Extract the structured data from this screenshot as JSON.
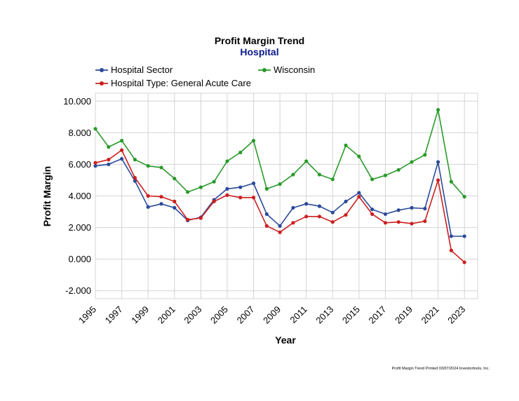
{
  "colors": {
    "hospital_sector": "#2c4a9a",
    "wisconsin": "#2a9a2a",
    "general_acute": "#cc1f1f",
    "subtitle": "#0a1a8c",
    "grid": "#d4d4d4"
  },
  "chart_data": {
    "type": "line",
    "title": "Profit Margin Trend",
    "subtitle": "Hospital",
    "xlabel": "Year",
    "ylabel": "Profit Margin",
    "ylim": [
      -2.5,
      10.5
    ],
    "xlim": [
      1995,
      2024
    ],
    "y_ticks": [
      "10.000",
      "8.000",
      "6.000",
      "4.000",
      "2.000",
      "0.000",
      "-2.000"
    ],
    "y_tick_values": [
      10,
      8,
      6,
      4,
      2,
      0,
      -2
    ],
    "x_ticks": [
      "1995",
      "1997",
      "1999",
      "2001",
      "2003",
      "2005",
      "2007",
      "2009",
      "2011",
      "2013",
      "2015",
      "2017",
      "2019",
      "2021",
      "2023"
    ],
    "grid": true,
    "x": [
      1995,
      1996,
      1997,
      1998,
      1999,
      2000,
      2001,
      2002,
      2003,
      2004,
      2005,
      2006,
      2007,
      2008,
      2009,
      2010,
      2011,
      2012,
      2013,
      2014,
      2015,
      2016,
      2017,
      2018,
      2019,
      2020,
      2021,
      2022,
      2023
    ],
    "series": [
      {
        "name": "Hospital Sector",
        "color_key": "hospital_sector",
        "values": [
          5.9,
          6.0,
          6.35,
          4.95,
          3.3,
          3.5,
          3.25,
          2.45,
          2.65,
          3.75,
          4.45,
          4.55,
          4.8,
          2.85,
          2.1,
          3.25,
          3.5,
          3.35,
          2.95,
          3.65,
          4.2,
          3.15,
          2.85,
          3.1,
          3.25,
          3.2,
          6.15,
          1.45,
          1.45
        ]
      },
      {
        "name": "Wisconsin",
        "color_key": "wisconsin",
        "values": [
          8.25,
          7.1,
          7.5,
          6.3,
          5.9,
          5.8,
          5.1,
          4.25,
          4.55,
          4.9,
          6.2,
          6.75,
          7.5,
          4.45,
          4.75,
          5.35,
          6.2,
          5.35,
          5.05,
          7.2,
          6.5,
          5.05,
          5.3,
          5.65,
          6.15,
          6.6,
          9.45,
          4.9,
          3.95
        ]
      },
      {
        "name": "Hospital Type: General Acute Care",
        "color_key": "general_acute",
        "values": [
          6.1,
          6.3,
          6.9,
          5.15,
          4.0,
          3.95,
          3.65,
          2.5,
          2.6,
          3.65,
          4.05,
          3.9,
          3.9,
          2.1,
          1.7,
          2.3,
          2.7,
          2.7,
          2.35,
          2.8,
          3.95,
          2.85,
          2.3,
          2.35,
          2.25,
          2.4,
          5.0,
          0.55,
          -0.2
        ]
      }
    ]
  },
  "footer": {
    "text": "Profit Margin Trend  Printed 03/07/2024  Investortools, Inc."
  }
}
